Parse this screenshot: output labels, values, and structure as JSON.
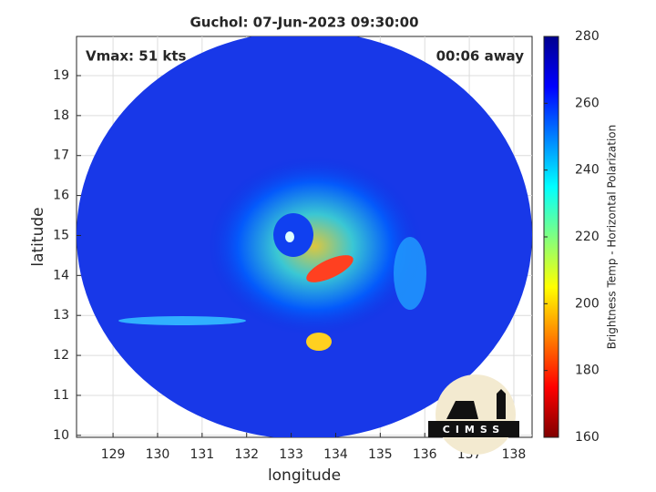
{
  "chart_data": {
    "type": "image-map",
    "title": "Guchol: 07-Jun-2023 09:30:00",
    "annotations": [
      "Vmax: 51 kts",
      "00:06 away"
    ],
    "x_label": "longitude",
    "y_label": "latitude",
    "xlim": [
      128.18,
      138.41
    ],
    "xticks": [
      129,
      130,
      131,
      132,
      133,
      134,
      135,
      136,
      137,
      138
    ],
    "ylim": [
      9.95,
      19.98
    ],
    "yticks": [
      10,
      11,
      12,
      13,
      14,
      15,
      16,
      17,
      18,
      19
    ],
    "grid": true,
    "colorbar": {
      "label": "Brightness Temp - Horizontal Polarization",
      "clim": [
        160,
        280
      ],
      "ticks": [
        160,
        180,
        200,
        220,
        240,
        260,
        280
      ],
      "colormap": [
        "#7f0000",
        "#ff0000",
        "#ff8000",
        "#ffff00",
        "#80ff80",
        "#00ffff",
        "#0080ff",
        "#0000ff",
        "#00008f"
      ]
    },
    "logo": "CIMSS"
  }
}
